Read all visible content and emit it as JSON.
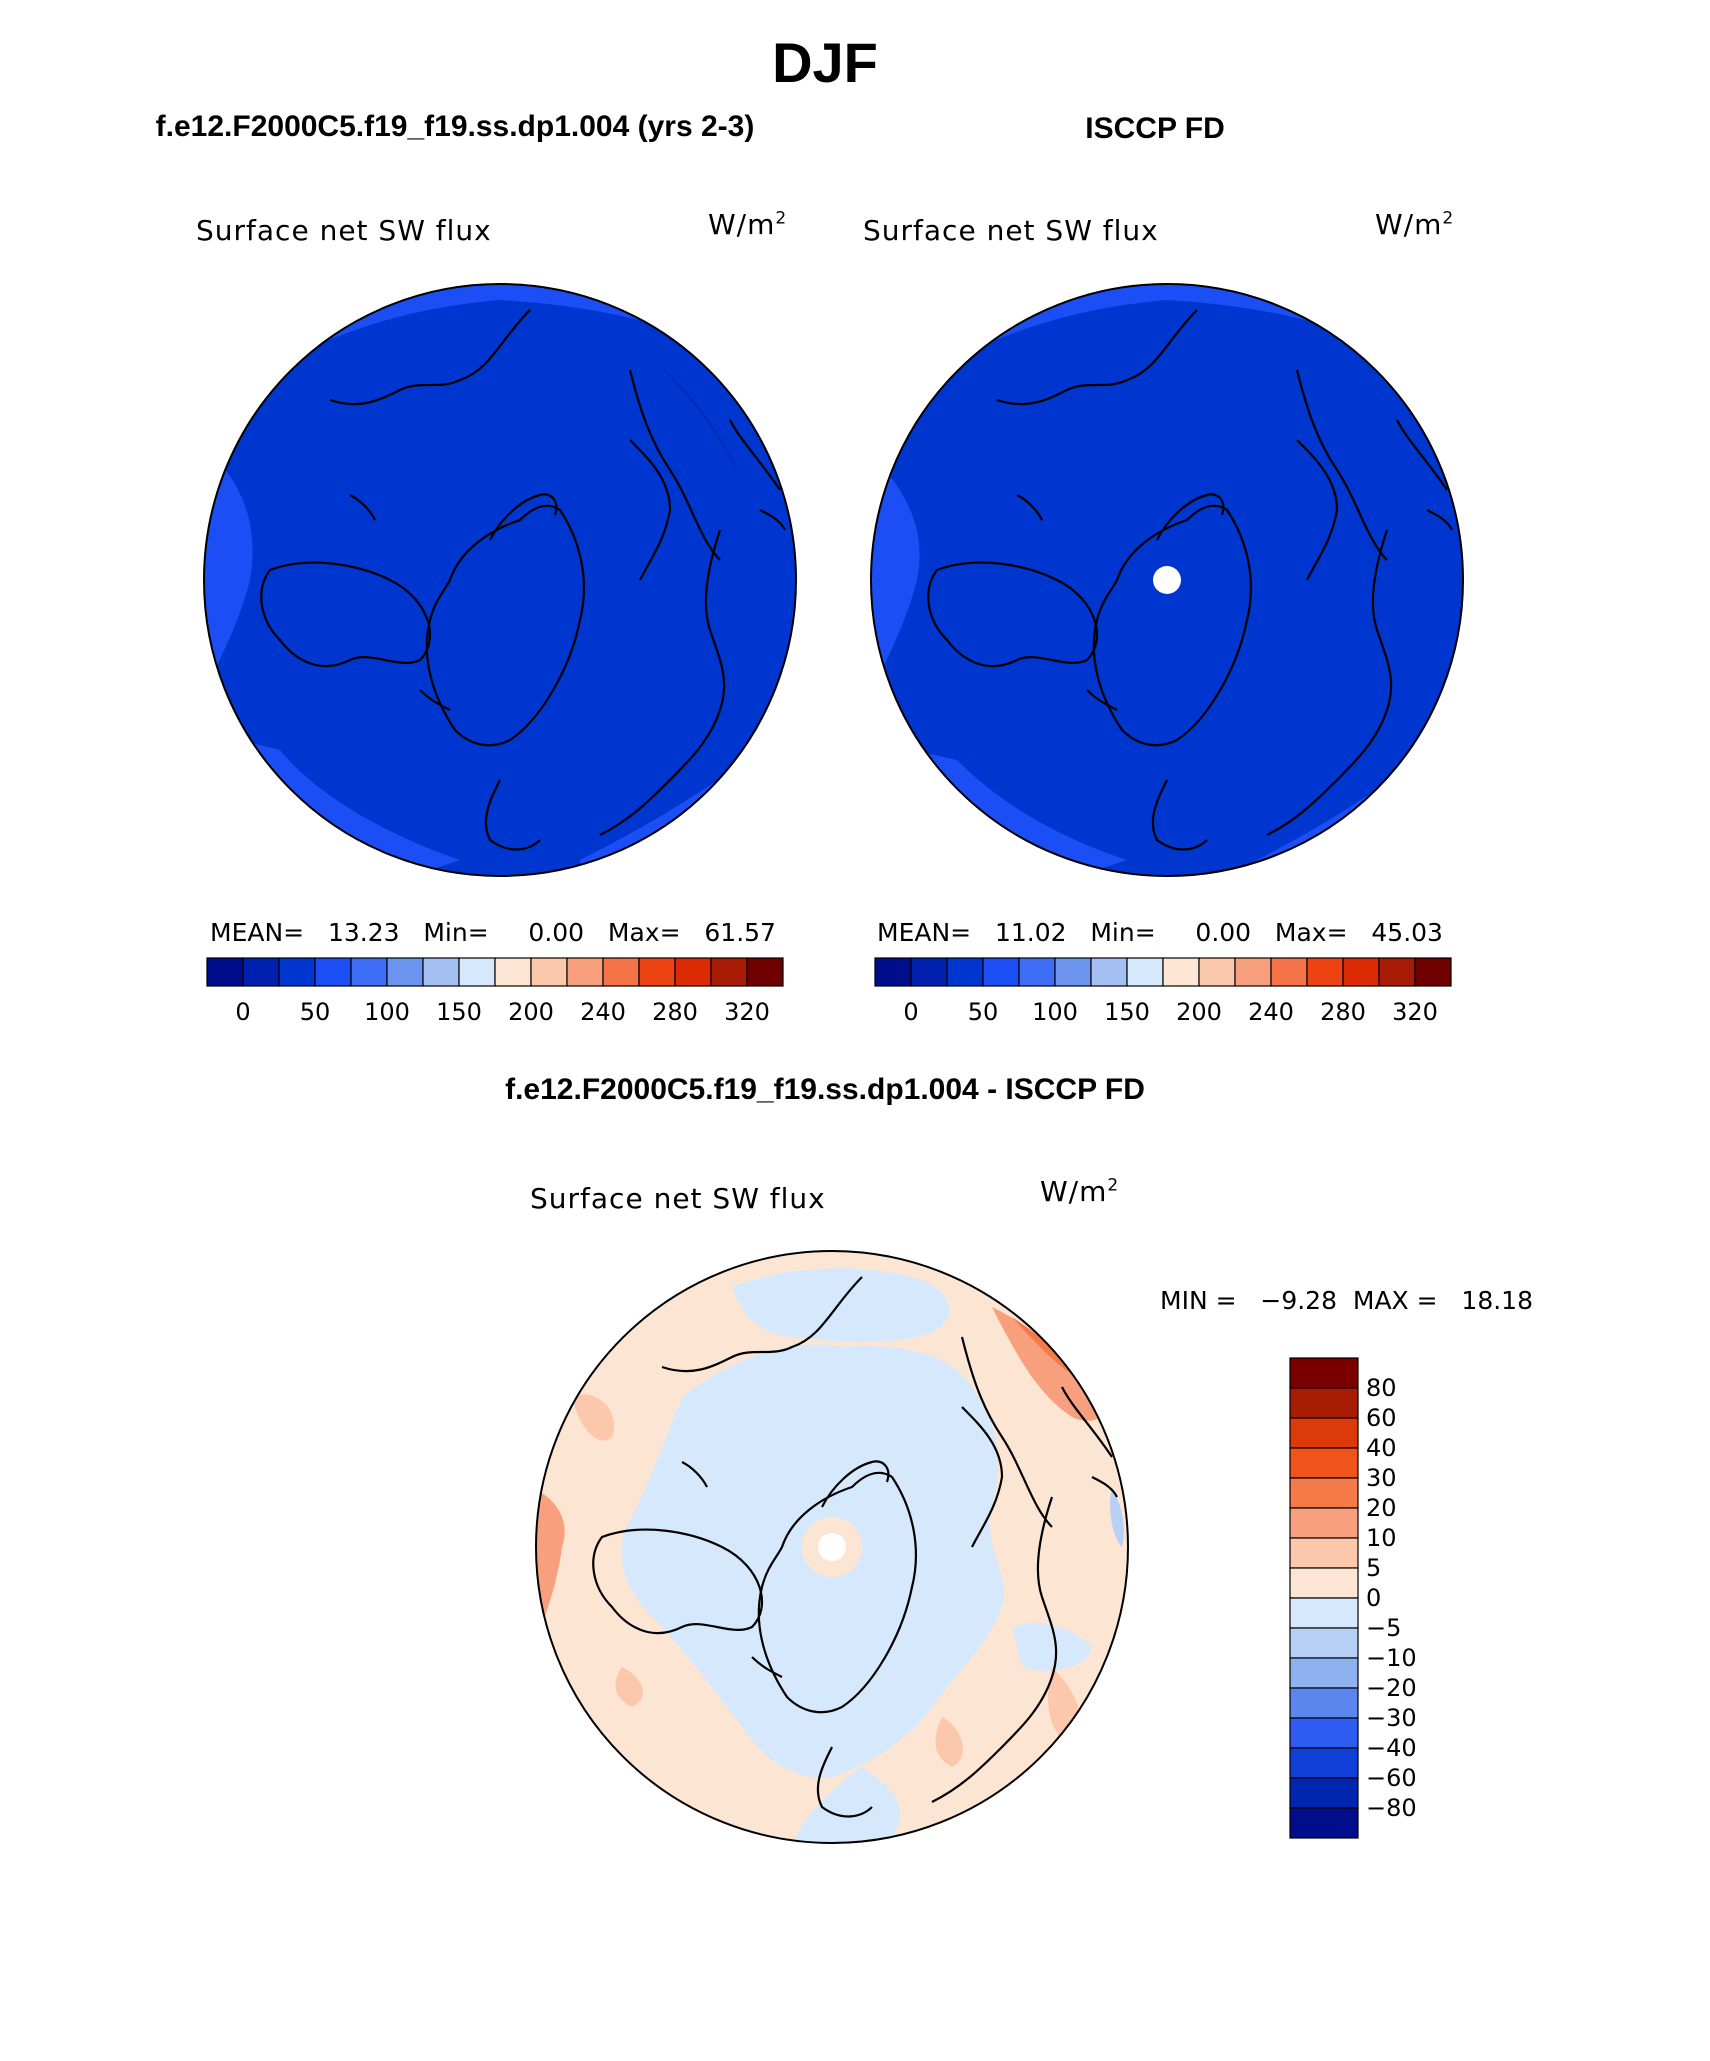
{
  "title": "DJF",
  "panels": [
    {
      "id": "model",
      "header": "f.e12.F2000C5.f19_f19.ss.dp1.004 (yrs 2-3)",
      "label": "Surface net SW flux",
      "units": "W/m",
      "units_sup": "2",
      "stats": "MEAN=   13.23   Min=     0.00   Max=   61.57"
    },
    {
      "id": "obs",
      "header": "ISCCP FD",
      "label": "Surface net SW flux",
      "units": "W/m",
      "units_sup": "2",
      "stats": "MEAN=   11.02   Min=     0.00   Max=   45.03"
    }
  ],
  "difference": {
    "header": "f.e12.F2000C5.f19_f19.ss.dp1.004 - ISCCP FD",
    "label": "Surface net SW flux",
    "units": "W/m",
    "units_sup": "2",
    "stats": "MIN =   −9.28  MAX =   18.18"
  },
  "chart_data": [
    {
      "type": "heatmap",
      "projection": "north polar stereographic",
      "title": "Surface net SW flux",
      "colorbar": {
        "orientation": "horizontal",
        "colors": [
          "#000e8c",
          "#0021b0",
          "#0036d0",
          "#1b4ef5",
          "#3d6ef5",
          "#6b95ef",
          "#a4c0f3",
          "#d6e8fb",
          "#fde5d3",
          "#fcc8ab",
          "#f8a07e",
          "#f57348",
          "#ee4414",
          "#dc2a05",
          "#a81b05",
          "#6e0000"
        ],
        "tick_labels": [
          "0",
          "50",
          "100",
          "150",
          "200",
          "240",
          "280",
          "320"
        ]
      }
    },
    {
      "type": "heatmap",
      "projection": "north polar stereographic",
      "title": "Surface net SW flux",
      "colorbar": {
        "orientation": "horizontal",
        "colors": [
          "#000e8c",
          "#0021b0",
          "#0036d0",
          "#1b4ef5",
          "#3d6ef5",
          "#6b95ef",
          "#a4c0f3",
          "#d6e8fb",
          "#fde5d3",
          "#fcc8ab",
          "#f8a07e",
          "#f57348",
          "#ee4414",
          "#dc2a05",
          "#a81b05",
          "#6e0000"
        ],
        "tick_labels": [
          "0",
          "50",
          "100",
          "150",
          "200",
          "240",
          "280",
          "320"
        ]
      }
    },
    {
      "type": "heatmap",
      "projection": "north polar stereographic",
      "title": "Surface net SW flux",
      "colorbar": {
        "orientation": "vertical",
        "colors_top_to_bottom": [
          "#7a0000",
          "#a81b05",
          "#dc3a0a",
          "#f0541a",
          "#f57a48",
          "#f8a07e",
          "#fcc8ab",
          "#fde5d3",
          "#d6e8fb",
          "#b7d0f5",
          "#8eb2f0",
          "#5a86ee",
          "#2f5cf0",
          "#1040d8",
          "#0026b0",
          "#000e8c"
        ],
        "tick_labels": [
          "80",
          "60",
          "40",
          "30",
          "20",
          "10",
          "5",
          "0",
          "−5",
          "−10",
          "−20",
          "−30",
          "−40",
          "−60",
          "−80"
        ]
      }
    }
  ]
}
